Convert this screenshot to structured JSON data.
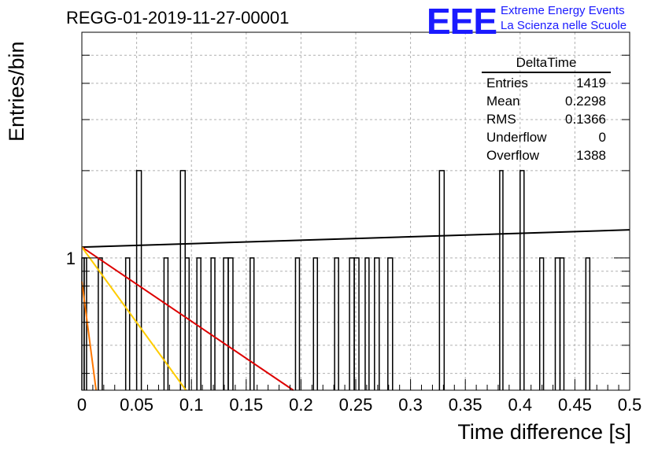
{
  "chart_data": {
    "type": "histogram",
    "title": "REGG-01-2019-11-27-00001",
    "xlabel": "Time difference [s]",
    "ylabel": "Entries/bin",
    "xlim": [
      0,
      0.5
    ],
    "ylim": [
      0.35,
      6
    ],
    "y_scale": "log",
    "grid": true,
    "x_ticks": [
      "0",
      "0.05",
      "0.1",
      "0.15",
      "0.2",
      "0.25",
      "0.3",
      "0.35",
      "0.4",
      "0.45",
      "0.5"
    ],
    "y_tick_labels": [
      "1"
    ],
    "bins": [
      {
        "x0": 0.0,
        "x1": 0.0021,
        "y": 1
      },
      {
        "x0": 0.0021,
        "x1": 0.0043,
        "y": 1
      },
      {
        "x0": 0.015,
        "x1": 0.0186,
        "y": 1
      },
      {
        "x0": 0.04,
        "x1": 0.0436,
        "y": 1
      },
      {
        "x0": 0.05,
        "x1": 0.0543,
        "y": 2
      },
      {
        "x0": 0.075,
        "x1": 0.0786,
        "y": 1
      },
      {
        "x0": 0.09,
        "x1": 0.0943,
        "y": 2
      },
      {
        "x0": 0.0943,
        "x1": 0.0979,
        "y": 1
      },
      {
        "x0": 0.105,
        "x1": 0.1086,
        "y": 1
      },
      {
        "x0": 0.1179,
        "x1": 0.1214,
        "y": 1
      },
      {
        "x0": 0.1293,
        "x1": 0.1336,
        "y": 1
      },
      {
        "x0": 0.1336,
        "x1": 0.1379,
        "y": 1
      },
      {
        "x0": 0.1536,
        "x1": 0.1571,
        "y": 1
      },
      {
        "x0": 0.195,
        "x1": 0.1986,
        "y": 1
      },
      {
        "x0": 0.2114,
        "x1": 0.215,
        "y": 1
      },
      {
        "x0": 0.2307,
        "x1": 0.2343,
        "y": 1
      },
      {
        "x0": 0.2443,
        "x1": 0.2486,
        "y": 1
      },
      {
        "x0": 0.2486,
        "x1": 0.2529,
        "y": 1
      },
      {
        "x0": 0.2586,
        "x1": 0.2621,
        "y": 1
      },
      {
        "x0": 0.2671,
        "x1": 0.2714,
        "y": 1
      },
      {
        "x0": 0.2793,
        "x1": 0.2836,
        "y": 1
      },
      {
        "x0": 0.3264,
        "x1": 0.3307,
        "y": 2
      },
      {
        "x0": 0.3814,
        "x1": 0.3843,
        "y": 2
      },
      {
        "x0": 0.4,
        "x1": 0.4036,
        "y": 2
      },
      {
        "x0": 0.4179,
        "x1": 0.4214,
        "y": 1
      },
      {
        "x0": 0.4321,
        "x1": 0.4364,
        "y": 1
      },
      {
        "x0": 0.4364,
        "x1": 0.44,
        "y": 1
      },
      {
        "x0": 0.46,
        "x1": 0.4636,
        "y": 1
      }
    ],
    "fit_lines": [
      {
        "color": "#000000",
        "points": [
          [
            0.0,
            1.09
          ],
          [
            0.5,
            1.25
          ]
        ]
      },
      {
        "color": "#dd0000",
        "points": [
          [
            0.0,
            1.09
          ],
          [
            0.193,
            0.35
          ]
        ]
      },
      {
        "color": "#ffcc00",
        "points": [
          [
            0.0,
            1.09
          ],
          [
            0.095,
            0.35
          ]
        ]
      },
      {
        "color": "#ff7700",
        "points": [
          [
            0.0,
            0.83
          ],
          [
            0.013,
            0.35
          ]
        ]
      }
    ]
  },
  "stats_box": {
    "title": "DeltaTime",
    "rows": [
      {
        "label": "Entries",
        "value": "1419"
      },
      {
        "label": "Mean",
        "value": "0.2298"
      },
      {
        "label": "RMS",
        "value": "0.1366"
      },
      {
        "label": "Underflow",
        "value": "0"
      },
      {
        "label": "Overflow",
        "value": "1388"
      }
    ]
  },
  "logo": {
    "text": "EEE",
    "line1": "Extreme Energy Events",
    "line2": "La Scienza nelle Scuole"
  }
}
